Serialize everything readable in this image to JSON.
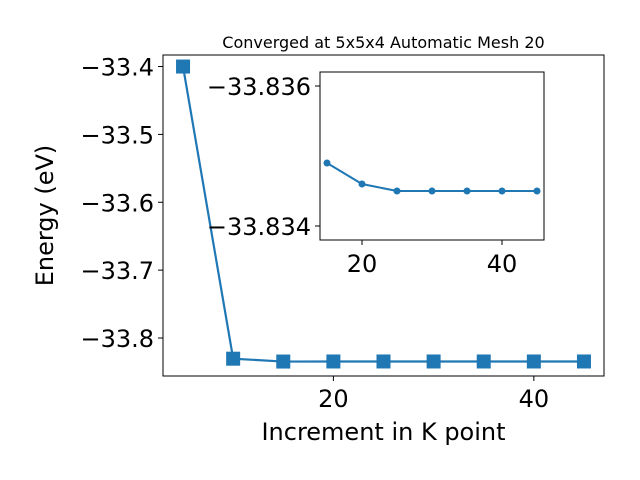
{
  "chart_data": [
    {
      "type": "line",
      "title": "Converged at 5x5x4 Automatic Mesh 20",
      "xlabel": "Increment in K point",
      "ylabel": "Energy (eV)",
      "xlim": [
        3,
        47
      ],
      "ylim": [
        -33.856,
        -33.383
      ],
      "xticks": [
        20,
        40
      ],
      "yticks": [
        -33.4,
        -33.5,
        -33.6,
        -33.7,
        -33.8
      ],
      "xtick_labels": [
        "20",
        "40"
      ],
      "ytick_labels": [
        "−33.4",
        "−33.5",
        "−33.6",
        "−33.7",
        "−33.8"
      ],
      "grid": false,
      "legend": "none",
      "marker": "square",
      "color": "#1f77b4",
      "x": [
        5,
        10,
        15,
        20,
        25,
        30,
        35,
        40,
        45
      ],
      "y": [
        -33.4,
        -33.8305,
        -33.8347,
        -33.8346,
        -33.8346,
        -33.8346,
        -33.8346,
        -33.8346,
        -33.8346
      ]
    },
    {
      "type": "line",
      "title": "",
      "xlabel": "",
      "ylabel": "",
      "xlim": [
        14,
        46
      ],
      "ylim": [
        -33.8338,
        -33.8362
      ],
      "xticks": [
        20,
        40
      ],
      "yticks": [
        -33.836,
        -33.834
      ],
      "xtick_labels": [
        "20",
        "40"
      ],
      "ytick_labels": [
        "−33.836",
        "−33.834"
      ],
      "grid": false,
      "legend": "none",
      "marker": "circle",
      "color": "#1f77b4",
      "x": [
        15,
        20,
        25,
        30,
        35,
        40,
        45
      ],
      "y": [
        -33.8349,
        -33.8346,
        -33.8345,
        -33.8345,
        -33.8345,
        -33.8345,
        -33.8345
      ]
    }
  ]
}
